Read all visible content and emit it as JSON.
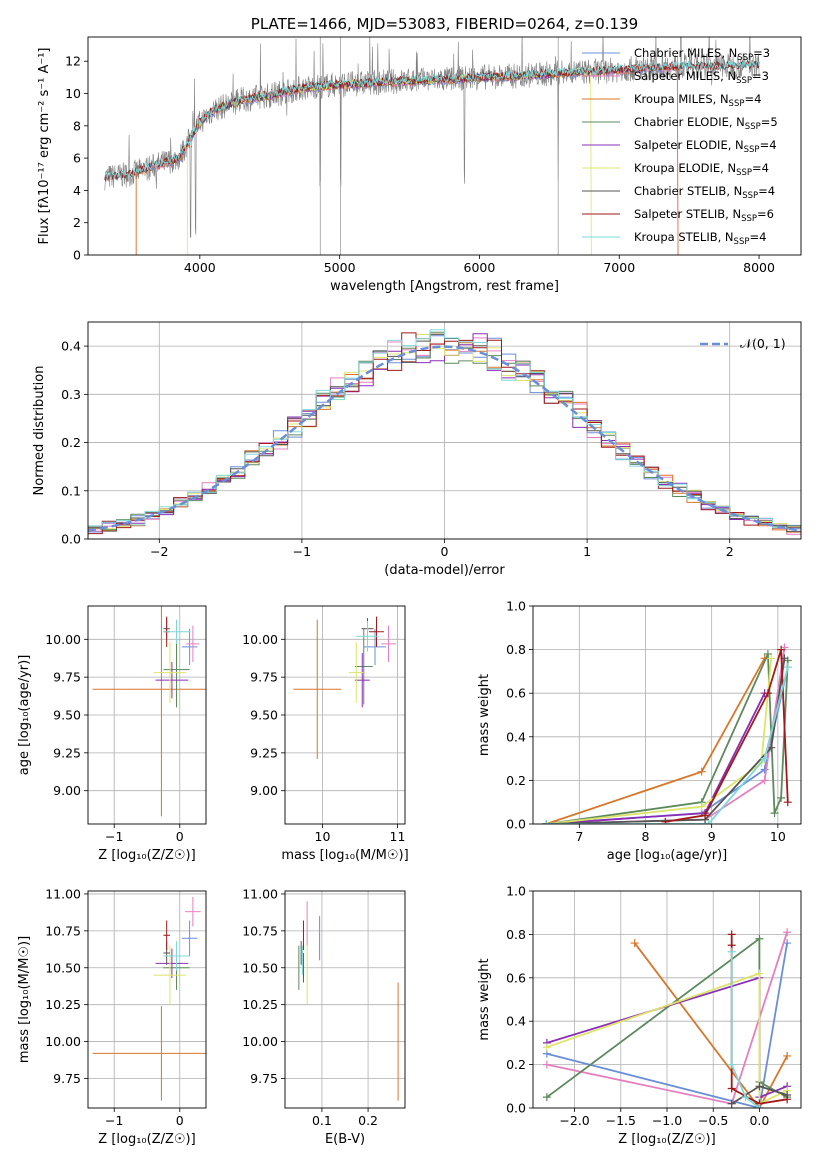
{
  "colors": {
    "chabrier_miles": "#6a8fd8",
    "salpeter_miles": "#e57fc0",
    "kroupa_miles": "#d8762a",
    "chabrier_elodie": "#5c8a5c",
    "salpeter_elodie": "#8a2eb8",
    "kroupa_elodie": "#dde46a",
    "chabrier_stelib": "#555555",
    "salpeter_stelib": "#a01a1a",
    "kroupa_stelib": "#7fd8d8",
    "normal_curve": "#6a8fd8",
    "data": "#7f7f7f"
  },
  "chart_data": [
    {
      "id": "spectrum",
      "type": "line",
      "title": "PLATE=1466, MJD=53083, FIBERID=0264, z=0.139",
      "xlabel": "wavelength [Angstrom, rest frame]",
      "ylabel": "Flux [fλ10⁻¹⁷ erg cm⁻² s⁻¹ A⁻¹]",
      "xlim": [
        3200,
        8300
      ],
      "ylim": [
        0,
        13.5
      ],
      "xticks": [
        4000,
        5000,
        6000,
        7000,
        8000
      ],
      "yticks": [
        0,
        2,
        4,
        6,
        8,
        10,
        12
      ],
      "grid": false,
      "legend_placement": "right",
      "legend": [
        {
          "pre": "Chabrier MILES, N",
          "sub": "SSP",
          "post": "=3",
          "key": "chabrier_miles"
        },
        {
          "pre": "Salpeter MILES, N",
          "sub": "SSP",
          "post": "=3",
          "key": "salpeter_miles"
        },
        {
          "pre": "Kroupa MILES, N",
          "sub": "SSP",
          "post": "=4",
          "key": "kroupa_miles"
        },
        {
          "pre": "Chabrier ELODIE, N",
          "sub": "SSP",
          "post": "=5",
          "key": "chabrier_elodie"
        },
        {
          "pre": "Salpeter ELODIE, N",
          "sub": "SSP",
          "post": "=4",
          "key": "salpeter_elodie"
        },
        {
          "pre": "Kroupa ELODIE, N",
          "sub": "SSP",
          "post": "=4",
          "key": "kroupa_elodie"
        },
        {
          "pre": "Chabrier STELIB, N",
          "sub": "SSP",
          "post": "=4",
          "key": "chabrier_stelib"
        },
        {
          "pre": "Salpeter STELIB, N",
          "sub": "SSP",
          "post": "=6",
          "key": "salpeter_stelib"
        },
        {
          "pre": "Kroupa STELIB, N",
          "sub": "SSP",
          "post": "=4",
          "key": "kroupa_stelib"
        }
      ],
      "continuum": {
        "x": [
          3320,
          3500,
          3700,
          3850,
          3950,
          4000,
          4100,
          4300,
          4500,
          4700,
          4900,
          5100,
          5300,
          5500,
          5800,
          6000,
          6300,
          6600,
          6900,
          7200,
          7500,
          7800,
          8000
        ],
        "y": [
          4.8,
          5.0,
          5.6,
          6.0,
          7.5,
          8.2,
          9.0,
          9.6,
          9.9,
          10.3,
          10.5,
          10.6,
          10.7,
          10.8,
          10.9,
          11.0,
          11.1,
          11.3,
          11.4,
          11.6,
          11.7,
          11.7,
          11.8
        ]
      },
      "model_cutoffs": [
        {
          "key": "kroupa_miles",
          "x": [
            3545,
            7420
          ]
        },
        {
          "key": "kroupa_elodie",
          "x": [
            3910,
            6800
          ]
        },
        {
          "key": "salpeter_miles",
          "x": [
            3545,
            7420
          ]
        }
      ],
      "spikes_x": [
        4861,
        6563,
        5007,
        5893,
        3934,
        3969
      ]
    },
    {
      "id": "residuals",
      "type": "histogram",
      "xlabel": "(data-model)/error",
      "ylabel": "Normed distribution",
      "xlim": [
        -2.5,
        2.5
      ],
      "ylim": [
        0,
        0.45
      ],
      "xticks": [
        -2,
        -1,
        0,
        1,
        2
      ],
      "yticks": [
        0.0,
        0.1,
        0.2,
        0.3,
        0.4
      ],
      "grid": true,
      "legend_placement": "top-right",
      "legend": [
        {
          "text": "𝒩(0, 1)",
          "key": "normal_curve"
        }
      ],
      "bin_width": 0.1
    },
    {
      "id": "age-vs-z",
      "type": "scatter",
      "xlabel": "Z [log₁₀(Z/Z☉)]",
      "ylabel": "age  [log₁₀(age/yr)]",
      "xlim": [
        -1.4,
        0.4
      ],
      "ylim": [
        8.78,
        10.22
      ],
      "xticks": [
        -1,
        0
      ],
      "yticks": [
        9.0,
        9.25,
        9.5,
        9.75,
        10.0
      ],
      "grid": true,
      "points": [
        {
          "key": "kroupa_miles",
          "x": -0.28,
          "y": 9.67,
          "xerr": 1.05,
          "yerr": 0.84
        },
        {
          "key": "chabrier_miles",
          "x": 0.15,
          "y": 9.95,
          "xerr": 0.12,
          "yerr": 0.12
        },
        {
          "key": "salpeter_miles",
          "x": 0.2,
          "y": 9.97,
          "xerr": 0.1,
          "yerr": 0.12
        },
        {
          "key": "chabrier_elodie",
          "x": -0.05,
          "y": 9.8,
          "xerr": 0.2,
          "yerr": 0.25
        },
        {
          "key": "salpeter_elodie",
          "x": -0.12,
          "y": 9.73,
          "xerr": 0.25,
          "yerr": 0.12
        },
        {
          "key": "kroupa_elodie",
          "x": -0.15,
          "y": 9.78,
          "xerr": 0.25,
          "yerr": 0.2
        },
        {
          "key": "chabrier_stelib",
          "x": -0.2,
          "y": 10.07,
          "xerr": 0.05,
          "yerr": 0.07
        },
        {
          "key": "salpeter_stelib",
          "x": -0.2,
          "y": 10.05,
          "xerr": 0.05,
          "yerr": 0.1
        },
        {
          "key": "kroupa_stelib",
          "x": -0.05,
          "y": 10.05,
          "xerr": 0.2,
          "yerr": 0.08
        }
      ]
    },
    {
      "id": "age-vs-mass",
      "type": "scatter",
      "xlabel": "mass [log₁₀(M/M☉)]",
      "ylabel": "",
      "xlim": [
        9.5,
        11.1
      ],
      "ylim": [
        8.78,
        10.22
      ],
      "xticks": [
        10,
        11
      ],
      "yticks": [
        9.0,
        9.25,
        9.5,
        9.75,
        10.0
      ],
      "grid": true,
      "points": [
        {
          "key": "kroupa_miles",
          "x": 9.93,
          "y": 9.67,
          "xerr": 0.32,
          "yerr": 0.46
        },
        {
          "key": "chabrier_miles",
          "x": 10.7,
          "y": 9.95,
          "xerr": 0.15,
          "yerr": 0.12
        },
        {
          "key": "salpeter_miles",
          "x": 10.88,
          "y": 9.97,
          "xerr": 0.1,
          "yerr": 0.12
        },
        {
          "key": "chabrier_elodie",
          "x": 10.55,
          "y": 9.82,
          "xerr": 0.12,
          "yerr": 0.25
        },
        {
          "key": "salpeter_elodie",
          "x": 10.53,
          "y": 9.73,
          "xerr": 0.1,
          "yerr": 0.18
        },
        {
          "key": "kroupa_elodie",
          "x": 10.45,
          "y": 9.78,
          "xerr": 0.1,
          "yerr": 0.2
        },
        {
          "key": "chabrier_stelib",
          "x": 10.6,
          "y": 10.07,
          "xerr": 0.08,
          "yerr": 0.07
        },
        {
          "key": "salpeter_stelib",
          "x": 10.72,
          "y": 10.05,
          "xerr": 0.1,
          "yerr": 0.1
        },
        {
          "key": "kroupa_stelib",
          "x": 10.6,
          "y": 10.02,
          "xerr": 0.15,
          "yerr": 0.1
        }
      ]
    },
    {
      "id": "weight-vs-age",
      "type": "line",
      "xlabel": "age  [log₁₀(age/yr)]",
      "ylabel": "mass weight",
      "xlim": [
        6.3,
        10.35
      ],
      "ylim": [
        0,
        1
      ],
      "xticks": [
        7,
        8,
        9,
        10
      ],
      "yticks": [
        0.0,
        0.2,
        0.4,
        0.6,
        0.8,
        1.0
      ],
      "grid": true,
      "series": [
        {
          "key": "kroupa_miles",
          "x": [
            6.5,
            8.85,
            9.8
          ],
          "y": [
            0.0,
            0.24,
            0.76
          ]
        },
        {
          "key": "chabrier_miles",
          "x": [
            6.5,
            8.85,
            9.8,
            10.15
          ],
          "y": [
            0.0,
            0.05,
            0.25,
            0.72
          ]
        },
        {
          "key": "salpeter_miles",
          "x": [
            6.5,
            8.9,
            9.8,
            10.1
          ],
          "y": [
            0.0,
            0.02,
            0.2,
            0.81
          ]
        },
        {
          "key": "chabrier_elodie",
          "x": [
            6.5,
            8.85,
            9.85,
            9.95,
            10.05,
            10.15
          ],
          "y": [
            0.0,
            0.1,
            0.78,
            0.05,
            0.12,
            0.75
          ]
        },
        {
          "key": "salpeter_elodie",
          "x": [
            6.5,
            8.9,
            9.8
          ],
          "y": [
            0.0,
            0.05,
            0.6
          ]
        },
        {
          "key": "kroupa_elodie",
          "x": [
            6.5,
            8.85,
            9.75,
            9.9
          ],
          "y": [
            0.0,
            0.08,
            0.28,
            0.76
          ]
        },
        {
          "key": "chabrier_stelib",
          "x": [
            6.5,
            8.9,
            9.9,
            10.1
          ],
          "y": [
            0.0,
            0.02,
            0.35,
            0.76
          ]
        },
        {
          "key": "salpeter_stelib",
          "x": [
            8.3,
            8.9,
            9.85,
            10.05,
            10.15
          ],
          "y": [
            0.01,
            0.04,
            0.6,
            0.8,
            0.1
          ]
        },
        {
          "key": "kroupa_stelib",
          "x": [
            6.5,
            8.95,
            9.8,
            10.15
          ],
          "y": [
            0.0,
            0.0,
            0.3,
            0.72
          ]
        }
      ]
    },
    {
      "id": "mass-vs-z",
      "type": "scatter",
      "xlabel": "Z [log₁₀(Z/Z☉)]",
      "ylabel": "mass [log₁₀(M/M☉)]",
      "xlim": [
        -1.4,
        0.4
      ],
      "ylim": [
        9.55,
        11.02
      ],
      "xticks": [
        -1,
        0
      ],
      "yticks": [
        9.75,
        10.0,
        10.25,
        10.5,
        10.75,
        11.0
      ],
      "grid": true,
      "points": [
        {
          "key": "kroupa_miles",
          "x": -0.28,
          "y": 9.92,
          "xerr": 1.05,
          "yerr": 0.32
        },
        {
          "key": "chabrier_miles",
          "x": 0.15,
          "y": 10.7,
          "xerr": 0.12,
          "yerr": 0.12
        },
        {
          "key": "salpeter_miles",
          "x": 0.2,
          "y": 10.88,
          "xerr": 0.12,
          "yerr": 0.1
        },
        {
          "key": "chabrier_elodie",
          "x": -0.05,
          "y": 10.5,
          "xerr": 0.2,
          "yerr": 0.15
        },
        {
          "key": "salpeter_elodie",
          "x": -0.12,
          "y": 10.53,
          "xerr": 0.25,
          "yerr": 0.1
        },
        {
          "key": "kroupa_elodie",
          "x": -0.15,
          "y": 10.45,
          "xerr": 0.25,
          "yerr": 0.2
        },
        {
          "key": "chabrier_stelib",
          "x": -0.2,
          "y": 10.6,
          "xerr": 0.05,
          "yerr": 0.08
        },
        {
          "key": "salpeter_stelib",
          "x": -0.2,
          "y": 10.72,
          "xerr": 0.05,
          "yerr": 0.1
        },
        {
          "key": "kroupa_stelib",
          "x": -0.05,
          "y": 10.58,
          "xerr": 0.2,
          "yerr": 0.1
        }
      ]
    },
    {
      "id": "mass-vs-ebv",
      "type": "scatter",
      "xlabel": "E(B-V)",
      "ylabel": "",
      "xlim": [
        0.02,
        0.28
      ],
      "ylim": [
        9.55,
        11.02
      ],
      "xticks": [
        0.1,
        0.2
      ],
      "yticks": [
        9.75,
        10.0,
        10.25,
        10.5,
        10.75,
        11.0
      ],
      "grid": true,
      "points": [
        {
          "key": "kroupa_miles",
          "x": 0.265,
          "y": 10.0,
          "xerr": 0,
          "yerr": 0.4
        },
        {
          "key": "chabrier_miles",
          "x": 0.095,
          "y": 10.7,
          "xerr": 0,
          "yerr": 0.15
        },
        {
          "key": "salpeter_miles",
          "x": 0.068,
          "y": 10.8,
          "xerr": 0,
          "yerr": 0.15
        },
        {
          "key": "chabrier_elodie",
          "x": 0.05,
          "y": 10.5,
          "xerr": 0,
          "yerr": 0.15
        },
        {
          "key": "salpeter_elodie",
          "x": 0.06,
          "y": 10.5,
          "xerr": 0,
          "yerr": 0.1
        },
        {
          "key": "kroupa_elodie",
          "x": 0.068,
          "y": 10.45,
          "xerr": 0,
          "yerr": 0.2
        },
        {
          "key": "chabrier_stelib",
          "x": 0.055,
          "y": 10.6,
          "xerr": 0,
          "yerr": 0.08
        },
        {
          "key": "salpeter_stelib",
          "x": 0.06,
          "y": 10.72,
          "xerr": 0,
          "yerr": 0.1
        },
        {
          "key": "kroupa_stelib",
          "x": 0.058,
          "y": 10.55,
          "xerr": 0,
          "yerr": 0.1
        }
      ]
    },
    {
      "id": "weight-vs-z",
      "type": "line",
      "xlabel": "Z [log₁₀(Z/Z☉)]",
      "ylabel": "mass weight",
      "xlim": [
        -2.45,
        0.45
      ],
      "ylim": [
        0,
        1
      ],
      "xticks": [
        -2.0,
        -1.5,
        -1.0,
        -0.5,
        0.0
      ],
      "yticks": [
        0.0,
        0.2,
        0.4,
        0.6,
        0.8,
        1.0
      ],
      "grid": true,
      "series": [
        {
          "key": "kroupa_miles",
          "x": [
            -1.35,
            0.0,
            0.3
          ],
          "y": [
            0.76,
            0.0,
            0.24
          ]
        },
        {
          "key": "chabrier_miles",
          "x": [
            -2.3,
            0.0,
            0.3
          ],
          "y": [
            0.25,
            0.0,
            0.76
          ]
        },
        {
          "key": "salpeter_miles",
          "x": [
            -2.3,
            -0.3,
            0.3
          ],
          "y": [
            0.2,
            0.02,
            0.81
          ]
        },
        {
          "key": "chabrier_elodie",
          "x": [
            -2.3,
            0.0,
            0.0,
            0.3
          ],
          "y": [
            0.05,
            0.78,
            0.12,
            0.05
          ]
        },
        {
          "key": "salpeter_elodie",
          "x": [
            -2.3,
            0.0,
            0.0,
            0.3
          ],
          "y": [
            0.3,
            0.6,
            0.05,
            0.1
          ]
        },
        {
          "key": "kroupa_elodie",
          "x": [
            -2.3,
            0.0,
            0.0,
            0.3
          ],
          "y": [
            0.28,
            0.62,
            0.02,
            0.08
          ]
        },
        {
          "key": "chabrier_stelib",
          "x": [
            -0.3,
            0.0,
            0.3
          ],
          "y": [
            0.02,
            0.1,
            0.06
          ]
        },
        {
          "key": "salpeter_stelib",
          "x": [
            -0.3,
            -0.3,
            -0.3,
            0.0,
            0.3
          ],
          "y": [
            0.8,
            0.75,
            0.09,
            0.02,
            0.04
          ]
        },
        {
          "key": "kroupa_stelib",
          "x": [
            -0.3,
            -0.3,
            -0.15,
            0.0
          ],
          "y": [
            0.72,
            0.2,
            0.05,
            0.0
          ]
        }
      ]
    }
  ]
}
